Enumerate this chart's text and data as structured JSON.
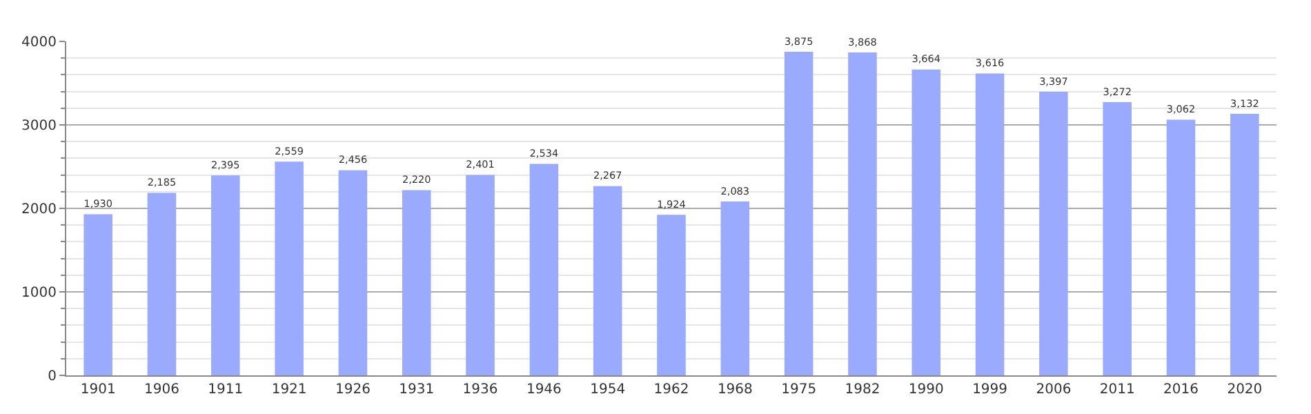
{
  "chart_data": {
    "type": "bar",
    "categories": [
      "1901",
      "1906",
      "1911",
      "1921",
      "1926",
      "1931",
      "1936",
      "1946",
      "1954",
      "1962",
      "1968",
      "1975",
      "1982",
      "1990",
      "1999",
      "2006",
      "2011",
      "2016",
      "2020"
    ],
    "values": [
      1930,
      2185,
      2395,
      2559,
      2456,
      2220,
      2401,
      2534,
      2267,
      1924,
      2083,
      3875,
      3868,
      3664,
      3616,
      3397,
      3272,
      3062,
      3132
    ],
    "color": "#99aaff",
    "ylim": [
      0,
      4000
    ],
    "yticks": [
      0,
      1000,
      2000,
      3000,
      4000
    ],
    "value_labels": [
      "1,930",
      "2,185",
      "2,395",
      "2,559",
      "2,456",
      "2,220",
      "2,401",
      "2,534",
      "2,267",
      "1,924",
      "2,083",
      "3,875",
      "3,868",
      "3,664",
      "3,616",
      "3,397",
      "3,272",
      "3,062",
      "3,132"
    ],
    "grid": "y"
  }
}
